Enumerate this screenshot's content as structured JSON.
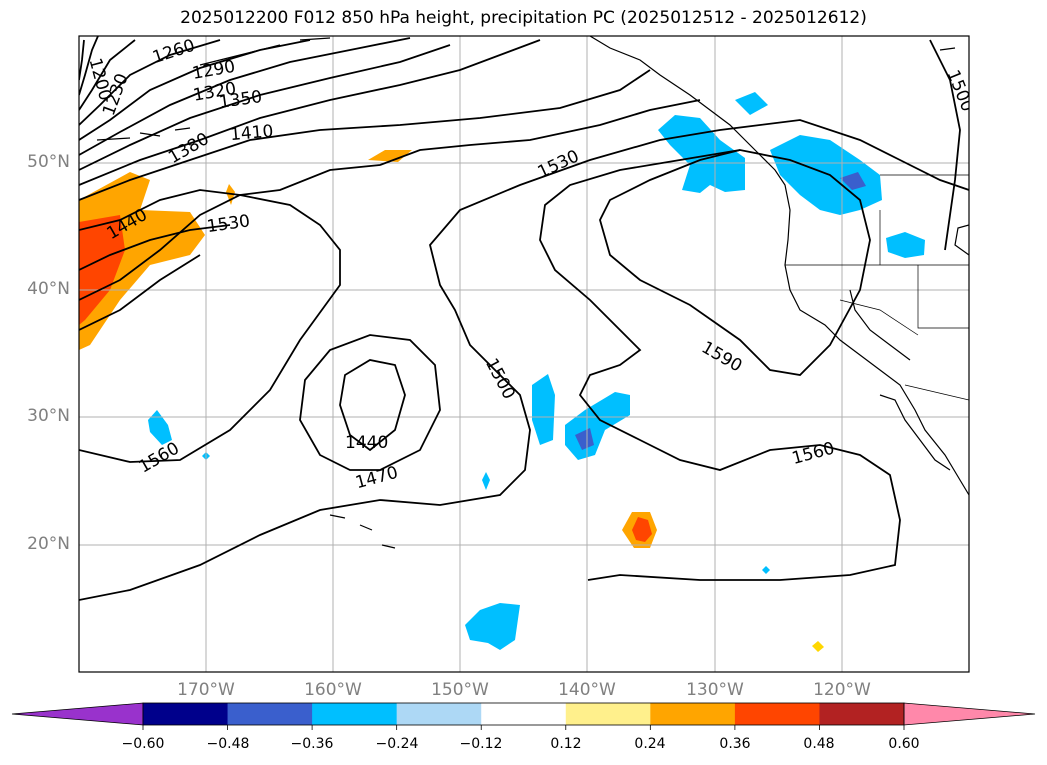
{
  "title": "2025012200 F012 850 hPa height, precipitation PC (2025012512 - 2025012612)",
  "map": {
    "projection": "plate-carree",
    "lon_range": [
      -180,
      -110
    ],
    "lat_range": [
      10,
      60
    ],
    "gridlines": true,
    "lat_labels": [
      "50°N",
      "40°N",
      "30°N",
      "20°N"
    ],
    "lon_labels": [
      "170°W",
      "160°W",
      "150°W",
      "140°W",
      "130°W",
      "120°W"
    ],
    "contour_variable": "850 hPa height",
    "contour_labels": [
      "1200",
      "1230",
      "1260",
      "1290",
      "1320",
      "1350",
      "1380",
      "1410",
      "1440",
      "1470",
      "1500",
      "1530",
      "1560",
      "1590"
    ],
    "filled_variable": "precipitation PC",
    "colors": {
      "contour": "#000000",
      "grid": "#b0b0b0",
      "coast": "#000000"
    }
  },
  "colorbar": {
    "ticks": [
      "−0.60",
      "−0.48",
      "−0.36",
      "−0.24",
      "−0.12",
      "0.12",
      "0.24",
      "0.36",
      "0.48",
      "0.60"
    ],
    "bins": [
      {
        "color": "#9932cc"
      },
      {
        "color": "#00008b"
      },
      {
        "color": "#3a5fcd"
      },
      {
        "color": "#00bfff"
      },
      {
        "color": "#add8f5"
      },
      {
        "color": "#ffffff"
      },
      {
        "color": "#fff08c"
      },
      {
        "color": "#ffa500"
      },
      {
        "color": "#ff4500"
      },
      {
        "color": "#b22222"
      },
      {
        "color": "#ff88aa"
      }
    ],
    "extend": "both"
  }
}
